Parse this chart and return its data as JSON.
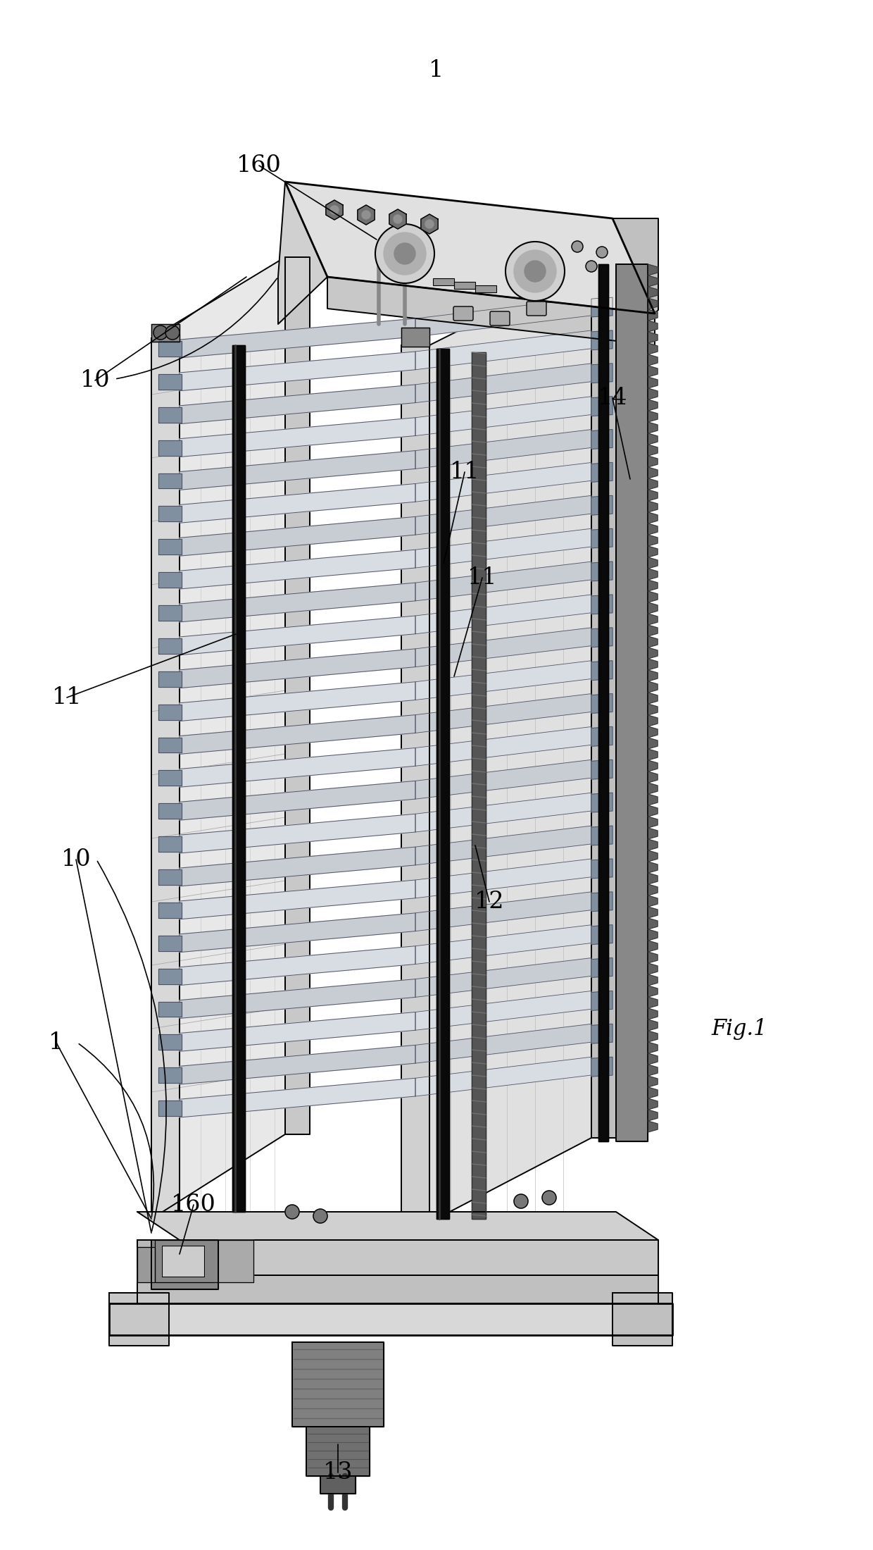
{
  "bg_color": "#ffffff",
  "line_color": "#000000",
  "fig_label": "Fig.1",
  "page_label": "1",
  "font_size_label": 24,
  "font_size_fig": 22,
  "lw_thick": 2.0,
  "lw_main": 1.4,
  "lw_thin": 0.9,
  "gray_light": "#e0e0e0",
  "gray_mid": "#b8b8b8",
  "gray_dark": "#888888",
  "gray_very_dark": "#444444",
  "black": "#111111",
  "plate_color1": "#c8cdd4",
  "plate_color2": "#d8dde4",
  "plate_edge": "#555566"
}
